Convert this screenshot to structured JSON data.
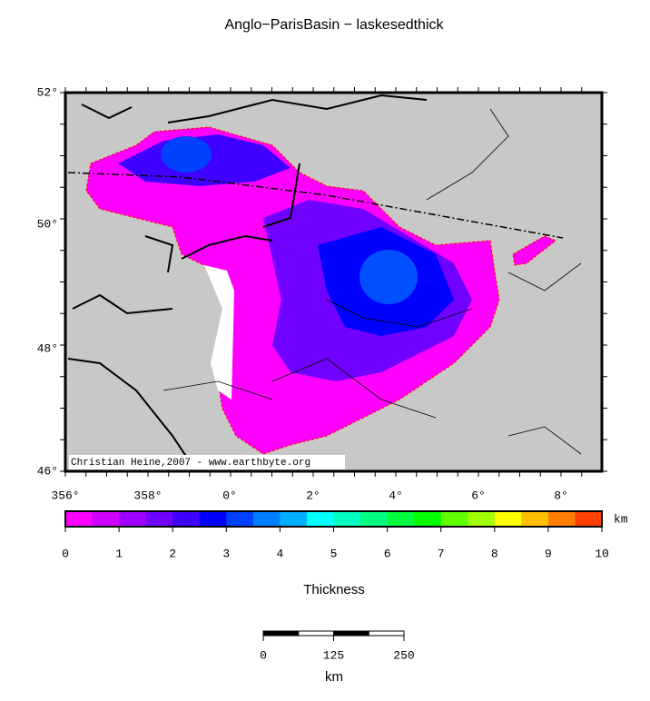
{
  "title": "Anglo−ParisBasin − laskesedthick",
  "map": {
    "lat_labels": [
      "52°",
      "50°",
      "48°",
      "46°"
    ],
    "lon_labels": [
      "356°",
      "358°",
      "0°",
      "2°",
      "4°",
      "6°",
      "8°"
    ],
    "credit": "Christian Heine,2007 - www.earthbyte.org"
  },
  "colorbar": {
    "ticks": [
      0,
      1,
      2,
      3,
      4,
      5,
      6,
      7,
      8,
      9,
      10
    ],
    "unit": "km",
    "label": "Thickness",
    "colors": [
      "#ff00ff",
      "#d000ff",
      "#a000ff",
      "#7000ff",
      "#4000ff",
      "#0000ff",
      "#0040ff",
      "#0080ff",
      "#00b0ff",
      "#00ffff",
      "#00ffc0",
      "#00ff80",
      "#00ff40",
      "#00ff00",
      "#60ff00",
      "#a0ff00",
      "#ffff00",
      "#ffc000",
      "#ff8000",
      "#ff4000"
    ]
  },
  "scalebar": {
    "ticks": [
      0,
      125,
      250
    ],
    "unit": "km"
  }
}
